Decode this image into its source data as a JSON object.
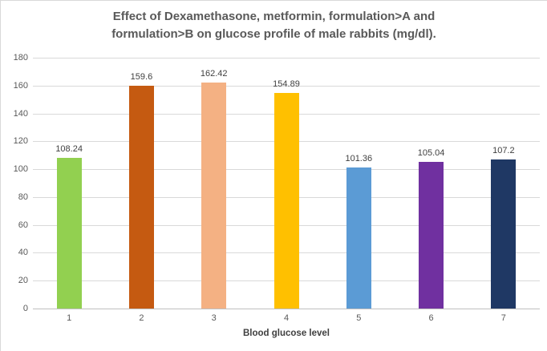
{
  "chart_data": {
    "type": "bar",
    "title": "Effect of Dexamethasone, metformin, formulation>A and formulation>B on glucose profile of male rabbits  (mg/dl).",
    "title_lines": [
      "Effect of Dexamethasone, metformin, formulation>A and",
      "formulation>B on glucose profile of male rabbits  (mg/dl)."
    ],
    "categories": [
      "1",
      "2",
      "3",
      "4",
      "5",
      "6",
      "7"
    ],
    "values": [
      108.24,
      159.6,
      162.42,
      154.89,
      101.36,
      105.04,
      107.2
    ],
    "value_labels": [
      "108.24",
      "159.6",
      "162.42",
      "154.89",
      "101.36",
      "105.04",
      "107.2"
    ],
    "bar_colors": [
      "#92D050",
      "#C55A11",
      "#F4B183",
      "#FFC000",
      "#5B9BD5",
      "#7030A0",
      "#1F3864"
    ],
    "xlabel": "Blood glucose level",
    "ylabel": "",
    "ylim": [
      0,
      180
    ],
    "yticks": [
      0,
      20,
      40,
      60,
      80,
      100,
      120,
      140,
      160,
      180
    ],
    "grid": true,
    "legend": false,
    "data_labels": true
  },
  "colors": {
    "background": "#FFFFFF",
    "chart_border": "#D9D9D9",
    "gridline": "#D9D9D9",
    "axis_line": "#BFBFBF",
    "title_text": "#595959",
    "axis_tick_text": "#595959",
    "data_label_text": "#404040",
    "x_axis_title_text": "#404040"
  }
}
